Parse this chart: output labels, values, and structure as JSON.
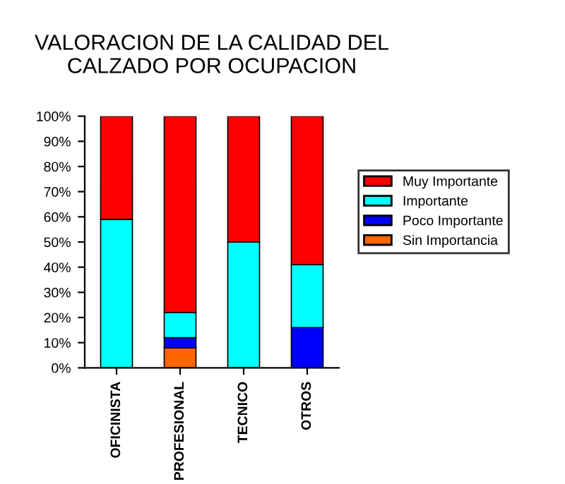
{
  "chart_data": {
    "type": "bar",
    "title": "VALORACION DE LA CALIDAD DEL\nCALZADO POR OCUPACION",
    "categories": [
      "OFICINISTA",
      "PROFESIONAL",
      "TECNICO",
      "OTROS"
    ],
    "stacked": true,
    "series": [
      {
        "name": "Sin Importancia",
        "color": "#ff6600",
        "values": [
          0,
          8,
          0,
          0
        ]
      },
      {
        "name": "Poco Importante",
        "color": "#0000ff",
        "values": [
          0,
          4,
          0,
          16
        ]
      },
      {
        "name": "Importante",
        "color": "#00ffff",
        "values": [
          59,
          10,
          50,
          25
        ]
      },
      {
        "name": "Muy Importante",
        "color": "#ff0000",
        "values": [
          41,
          78,
          50,
          59
        ]
      }
    ],
    "ylim": [
      0,
      100
    ],
    "yticks": [
      {
        "value": 0,
        "label": "0%"
      },
      {
        "value": 10,
        "label": "10%"
      },
      {
        "value": 20,
        "label": "20%"
      },
      {
        "value": 30,
        "label": "30%"
      },
      {
        "value": 40,
        "label": "40%"
      },
      {
        "value": 50,
        "label": "50%"
      },
      {
        "value": 60,
        "label": "60%"
      },
      {
        "value": 70,
        "label": "70%"
      },
      {
        "value": 80,
        "label": "80%"
      },
      {
        "value": 90,
        "label": "90%"
      },
      {
        "value": 100,
        "label": "100%"
      }
    ],
    "legend": "right",
    "grid": false
  }
}
